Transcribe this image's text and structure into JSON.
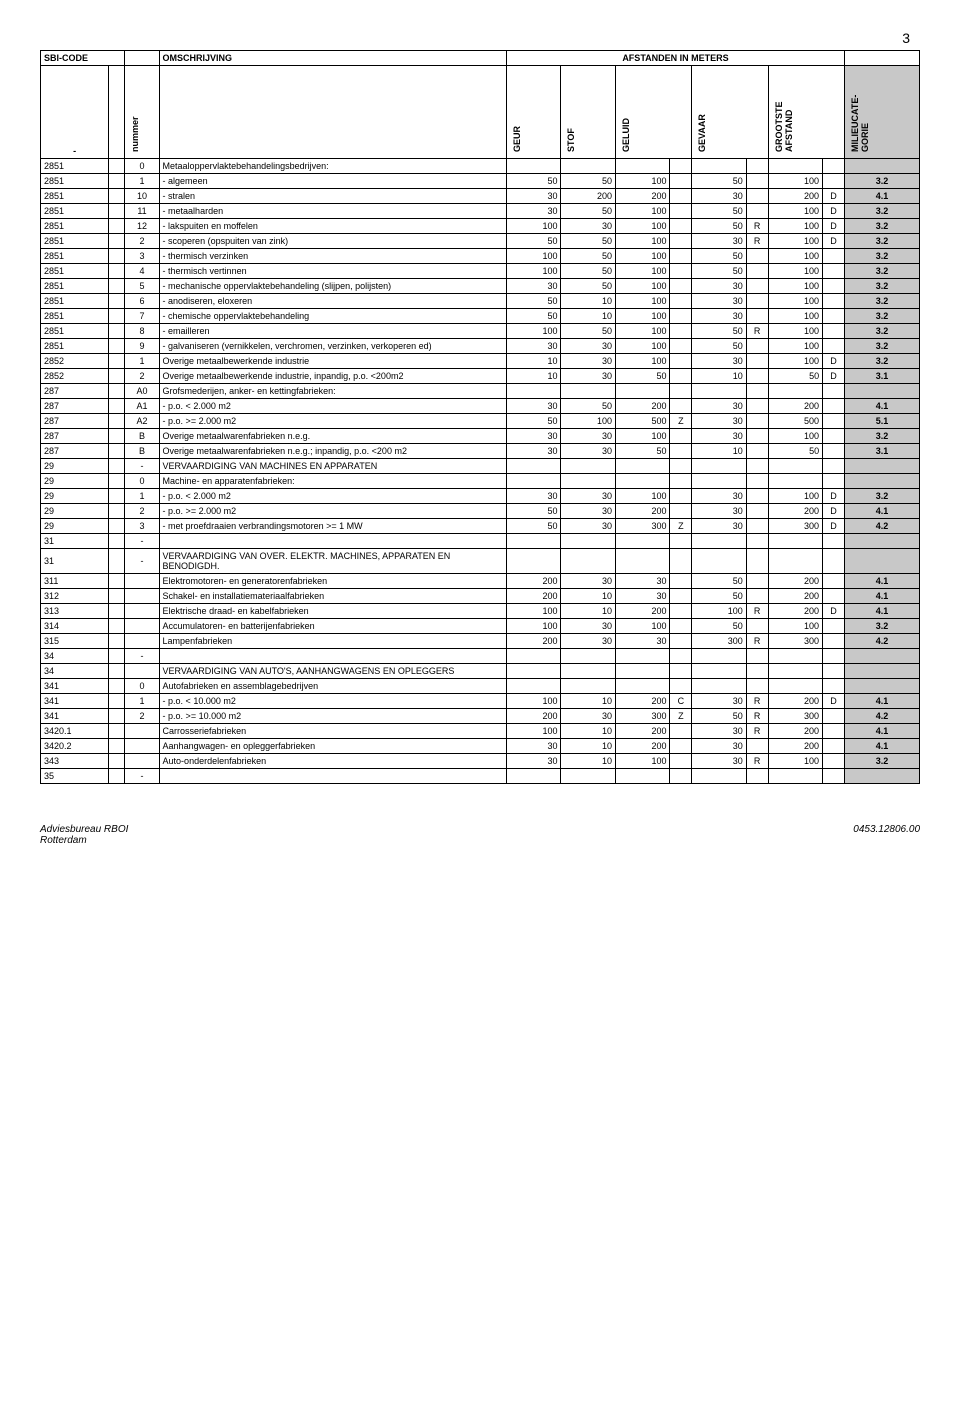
{
  "page_number": "3",
  "header": {
    "sbi": "SBI-CODE",
    "desc": "OMSCHRIJVING",
    "dist": "AFSTANDEN IN METERS",
    "nummer": "nummer",
    "geur": "GEUR",
    "stof": "STOF",
    "geluid": "GELUID",
    "gevaar": "GEVAAR",
    "grootste": "GROOTSTE AFSTAND",
    "cat": "MILIEUCATE-GORIE",
    "dash": "-"
  },
  "rows": [
    {
      "sbi": "2851",
      "n": "0",
      "desc": "Metaaloppervlaktebehandelingsbedrijven:",
      "geur": "",
      "stof": "",
      "geluid": "",
      "gf": "",
      "gevaar": "",
      "vf": "",
      "ga": "",
      "gaf": "",
      "cat": ""
    },
    {
      "sbi": "2851",
      "n": "1",
      "desc": "- algemeen",
      "geur": "50",
      "stof": "50",
      "geluid": "100",
      "gf": "",
      "gevaar": "50",
      "vf": "",
      "ga": "100",
      "gaf": "",
      "cat": "3.2"
    },
    {
      "sbi": "2851",
      "n": "10",
      "desc": "- stralen",
      "geur": "30",
      "stof": "200",
      "geluid": "200",
      "gf": "",
      "gevaar": "30",
      "vf": "",
      "ga": "200",
      "gaf": "D",
      "cat": "4.1"
    },
    {
      "sbi": "2851",
      "n": "11",
      "desc": "- metaalharden",
      "geur": "30",
      "stof": "50",
      "geluid": "100",
      "gf": "",
      "gevaar": "50",
      "vf": "",
      "ga": "100",
      "gaf": "D",
      "cat": "3.2"
    },
    {
      "sbi": "2851",
      "n": "12",
      "desc": "- lakspuiten en moffelen",
      "geur": "100",
      "stof": "30",
      "geluid": "100",
      "gf": "",
      "gevaar": "50",
      "vf": "R",
      "ga": "100",
      "gaf": "D",
      "cat": "3.2"
    },
    {
      "sbi": "2851",
      "n": "2",
      "desc": "- scoperen (opspuiten van zink)",
      "geur": "50",
      "stof": "50",
      "geluid": "100",
      "gf": "",
      "gevaar": "30",
      "vf": "R",
      "ga": "100",
      "gaf": "D",
      "cat": "3.2"
    },
    {
      "sbi": "2851",
      "n": "3",
      "desc": "- thermisch verzinken",
      "geur": "100",
      "stof": "50",
      "geluid": "100",
      "gf": "",
      "gevaar": "50",
      "vf": "",
      "ga": "100",
      "gaf": "",
      "cat": "3.2"
    },
    {
      "sbi": "2851",
      "n": "4",
      "desc": "- thermisch vertinnen",
      "geur": "100",
      "stof": "50",
      "geluid": "100",
      "gf": "",
      "gevaar": "50",
      "vf": "",
      "ga": "100",
      "gaf": "",
      "cat": "3.2"
    },
    {
      "sbi": "2851",
      "n": "5",
      "desc": "- mechanische oppervlaktebehandeling (slijpen, polijsten)",
      "geur": "30",
      "stof": "50",
      "geluid": "100",
      "gf": "",
      "gevaar": "30",
      "vf": "",
      "ga": "100",
      "gaf": "",
      "cat": "3.2"
    },
    {
      "sbi": "2851",
      "n": "6",
      "desc": "- anodiseren, eloxeren",
      "geur": "50",
      "stof": "10",
      "geluid": "100",
      "gf": "",
      "gevaar": "30",
      "vf": "",
      "ga": "100",
      "gaf": "",
      "cat": "3.2"
    },
    {
      "sbi": "2851",
      "n": "7",
      "desc": "- chemische oppervlaktebehandeling",
      "geur": "50",
      "stof": "10",
      "geluid": "100",
      "gf": "",
      "gevaar": "30",
      "vf": "",
      "ga": "100",
      "gaf": "",
      "cat": "3.2"
    },
    {
      "sbi": "2851",
      "n": "8",
      "desc": "- emailleren",
      "geur": "100",
      "stof": "50",
      "geluid": "100",
      "gf": "",
      "gevaar": "50",
      "vf": "R",
      "ga": "100",
      "gaf": "",
      "cat": "3.2"
    },
    {
      "sbi": "2851",
      "n": "9",
      "desc": "- galvaniseren (vernikkelen, verchromen, verzinken, verkoperen ed)",
      "geur": "30",
      "stof": "30",
      "geluid": "100",
      "gf": "",
      "gevaar": "50",
      "vf": "",
      "ga": "100",
      "gaf": "",
      "cat": "3.2"
    },
    {
      "sbi": "2852",
      "n": "1",
      "desc": "Overige metaalbewerkende industrie",
      "geur": "10",
      "stof": "30",
      "geluid": "100",
      "gf": "",
      "gevaar": "30",
      "vf": "",
      "ga": "100",
      "gaf": "D",
      "cat": "3.2"
    },
    {
      "sbi": "2852",
      "n": "2",
      "desc": "Overige metaalbewerkende industrie, inpandig, p.o. <200m2",
      "geur": "10",
      "stof": "30",
      "geluid": "50",
      "gf": "",
      "gevaar": "10",
      "vf": "",
      "ga": "50",
      "gaf": "D",
      "cat": "3.1"
    },
    {
      "sbi": "287",
      "n": "A0",
      "desc": "Grofsmederijen, anker- en kettingfabrieken:",
      "geur": "",
      "stof": "",
      "geluid": "",
      "gf": "",
      "gevaar": "",
      "vf": "",
      "ga": "",
      "gaf": "",
      "cat": ""
    },
    {
      "sbi": "287",
      "n": "A1",
      "desc": "- p.o. < 2.000 m2",
      "geur": "30",
      "stof": "50",
      "geluid": "200",
      "gf": "",
      "gevaar": "30",
      "vf": "",
      "ga": "200",
      "gaf": "",
      "cat": "4.1"
    },
    {
      "sbi": "287",
      "n": "A2",
      "desc": "- p.o. >= 2.000 m2",
      "geur": "50",
      "stof": "100",
      "geluid": "500",
      "gf": "Z",
      "gevaar": "30",
      "vf": "",
      "ga": "500",
      "gaf": "",
      "cat": "5.1"
    },
    {
      "sbi": "287",
      "n": "B",
      "desc": "Overige metaalwarenfabrieken n.e.g.",
      "geur": "30",
      "stof": "30",
      "geluid": "100",
      "gf": "",
      "gevaar": "30",
      "vf": "",
      "ga": "100",
      "gaf": "",
      "cat": "3.2"
    },
    {
      "sbi": "287",
      "n": "B",
      "desc": "Overige metaalwarenfabrieken n.e.g.; inpandig, p.o. <200 m2",
      "geur": "30",
      "stof": "30",
      "geluid": "50",
      "gf": "",
      "gevaar": "10",
      "vf": "",
      "ga": "50",
      "gaf": "",
      "cat": "3.1"
    },
    {
      "sbi": "29",
      "n": "-",
      "desc": "VERVAARDIGING VAN MACHINES EN APPARATEN",
      "geur": "",
      "stof": "",
      "geluid": "",
      "gf": "",
      "gevaar": "",
      "vf": "",
      "ga": "",
      "gaf": "",
      "cat": ""
    },
    {
      "sbi": "29",
      "n": "0",
      "desc": "Machine- en apparatenfabrieken:",
      "geur": "",
      "stof": "",
      "geluid": "",
      "gf": "",
      "gevaar": "",
      "vf": "",
      "ga": "",
      "gaf": "",
      "cat": ""
    },
    {
      "sbi": "29",
      "n": "1",
      "desc": "- p.o. < 2.000 m2",
      "geur": "30",
      "stof": "30",
      "geluid": "100",
      "gf": "",
      "gevaar": "30",
      "vf": "",
      "ga": "100",
      "gaf": "D",
      "cat": "3.2"
    },
    {
      "sbi": "29",
      "n": "2",
      "desc": "- p.o. >= 2.000 m2",
      "geur": "50",
      "stof": "30",
      "geluid": "200",
      "gf": "",
      "gevaar": "30",
      "vf": "",
      "ga": "200",
      "gaf": "D",
      "cat": "4.1"
    },
    {
      "sbi": "29",
      "n": "3",
      "desc": "- met proefdraaien verbrandingsmotoren >= 1 MW",
      "geur": "50",
      "stof": "30",
      "geluid": "300",
      "gf": "Z",
      "gevaar": "30",
      "vf": "",
      "ga": "300",
      "gaf": "D",
      "cat": "4.2"
    },
    {
      "sbi": "31",
      "n": "-",
      "desc": "",
      "geur": "",
      "stof": "",
      "geluid": "",
      "gf": "",
      "gevaar": "",
      "vf": "",
      "ga": "",
      "gaf": "",
      "cat": ""
    },
    {
      "sbi": "31",
      "n": "-",
      "desc": "VERVAARDIGING VAN OVER. ELEKTR. MACHINES, APPARATEN EN BENODIGDH.",
      "geur": "",
      "stof": "",
      "geluid": "",
      "gf": "",
      "gevaar": "",
      "vf": "",
      "ga": "",
      "gaf": "",
      "cat": ""
    },
    {
      "sbi": "311",
      "n": "",
      "desc": "Elektromotoren- en generatorenfabrieken",
      "geur": "200",
      "stof": "30",
      "geluid": "30",
      "gf": "",
      "gevaar": "50",
      "vf": "",
      "ga": "200",
      "gaf": "",
      "cat": "4.1"
    },
    {
      "sbi": "312",
      "n": "",
      "desc": "Schakel- en installatiemateriaalfabrieken",
      "geur": "200",
      "stof": "10",
      "geluid": "30",
      "gf": "",
      "gevaar": "50",
      "vf": "",
      "ga": "200",
      "gaf": "",
      "cat": "4.1"
    },
    {
      "sbi": "313",
      "n": "",
      "desc": "Elektrische draad- en kabelfabrieken",
      "geur": "100",
      "stof": "10",
      "geluid": "200",
      "gf": "",
      "gevaar": "100",
      "vf": "R",
      "ga": "200",
      "gaf": "D",
      "cat": "4.1"
    },
    {
      "sbi": "314",
      "n": "",
      "desc": "Accumulatoren- en batterijenfabrieken",
      "geur": "100",
      "stof": "30",
      "geluid": "100",
      "gf": "",
      "gevaar": "50",
      "vf": "",
      "ga": "100",
      "gaf": "",
      "cat": "3.2"
    },
    {
      "sbi": "315",
      "n": "",
      "desc": "Lampenfabrieken",
      "geur": "200",
      "stof": "30",
      "geluid": "30",
      "gf": "",
      "gevaar": "300",
      "vf": "R",
      "ga": "300",
      "gaf": "",
      "cat": "4.2"
    },
    {
      "sbi": "34",
      "n": "-",
      "desc": "",
      "geur": "",
      "stof": "",
      "geluid": "",
      "gf": "",
      "gevaar": "",
      "vf": "",
      "ga": "",
      "gaf": "",
      "cat": ""
    },
    {
      "sbi": "34",
      "n": "",
      "desc": "VERVAARDIGING VAN AUTO'S, AANHANGWAGENS EN OPLEGGERS",
      "geur": "",
      "stof": "",
      "geluid": "",
      "gf": "",
      "gevaar": "",
      "vf": "",
      "ga": "",
      "gaf": "",
      "cat": ""
    },
    {
      "sbi": "341",
      "n": "0",
      "desc": "Autofabrieken en assemblagebedrijven",
      "geur": "",
      "stof": "",
      "geluid": "",
      "gf": "",
      "gevaar": "",
      "vf": "",
      "ga": "",
      "gaf": "",
      "cat": ""
    },
    {
      "sbi": "341",
      "n": "1",
      "desc": "- p.o. < 10.000 m2",
      "geur": "100",
      "stof": "10",
      "geluid": "200",
      "gf": "C",
      "gevaar": "30",
      "vf": "R",
      "ga": "200",
      "gaf": "D",
      "cat": "4.1"
    },
    {
      "sbi": "341",
      "n": "2",
      "desc": "- p.o. >= 10.000 m2",
      "geur": "200",
      "stof": "30",
      "geluid": "300",
      "gf": "Z",
      "gevaar": "50",
      "vf": "R",
      "ga": "300",
      "gaf": "",
      "cat": "4.2"
    },
    {
      "sbi": "3420.1",
      "n": "",
      "desc": "Carrosseriefabrieken",
      "geur": "100",
      "stof": "10",
      "geluid": "200",
      "gf": "",
      "gevaar": "30",
      "vf": "R",
      "ga": "200",
      "gaf": "",
      "cat": "4.1"
    },
    {
      "sbi": "3420.2",
      "n": "",
      "desc": "Aanhangwagen- en opleggerfabrieken",
      "geur": "30",
      "stof": "10",
      "geluid": "200",
      "gf": "",
      "gevaar": "30",
      "vf": "",
      "ga": "200",
      "gaf": "",
      "cat": "4.1"
    },
    {
      "sbi": "343",
      "n": "",
      "desc": "Auto-onderdelenfabrieken",
      "geur": "30",
      "stof": "10",
      "geluid": "100",
      "gf": "",
      "gevaar": "30",
      "vf": "R",
      "ga": "100",
      "gaf": "",
      "cat": "3.2"
    },
    {
      "sbi": "35",
      "n": "-",
      "desc": "",
      "geur": "",
      "stof": "",
      "geluid": "",
      "gf": "",
      "gevaar": "",
      "vf": "",
      "ga": "",
      "gaf": "",
      "cat": ""
    }
  ],
  "footer": {
    "left1": "Adviesbureau RBOI",
    "left2": "Rotterdam",
    "right": "0453.12806.00"
  },
  "colors": {
    "cat_bg": "#c8c8c8",
    "border": "#000000",
    "text": "#000000",
    "bg": "#ffffff"
  }
}
